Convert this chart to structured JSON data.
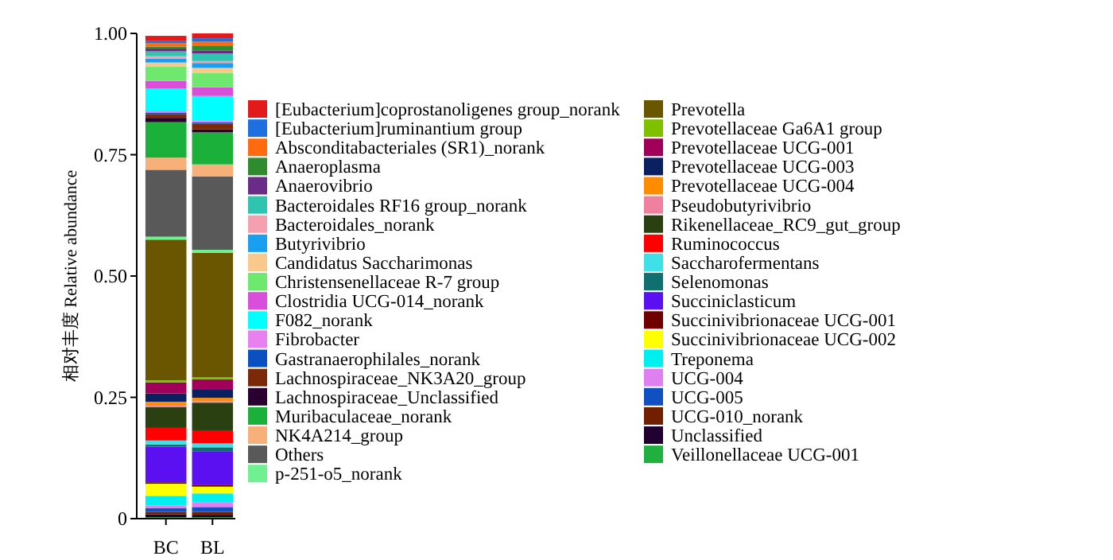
{
  "chart_data": {
    "type": "bar",
    "stacked": true,
    "ylabel": "相对丰度 Relative abundance",
    "categories": [
      "BC",
      "BL"
    ],
    "ylim": [
      0,
      1
    ],
    "yticks": [
      0,
      0.25,
      {
        "value": 0.5,
        "label": "0.50"
      },
      0.75,
      {
        "value": 1,
        "label": "1.00"
      }
    ],
    "legend": "right",
    "grid": false,
    "series": [
      {
        "name": "Veillonellaceae UCG-001",
        "color": "#20b040",
        "values": [
          0.003,
          0.003
        ]
      },
      {
        "name": "Unclassified",
        "color": "#200030",
        "values": [
          0.006,
          0.005
        ]
      },
      {
        "name": "UCG-010_norank",
        "color": "#702000",
        "values": [
          0.005,
          0.006
        ]
      },
      {
        "name": "UCG-005",
        "color": "#1050c0",
        "values": [
          0.008,
          0.01
        ]
      },
      {
        "name": "UCG-004",
        "color": "#e080f0",
        "values": [
          0.005,
          0.01
        ]
      },
      {
        "name": "Treponema",
        "color": "#00f0f0",
        "values": [
          0.02,
          0.018
        ]
      },
      {
        "name": "Succinivibrionaceae UCG-002",
        "color": "#ffff00",
        "values": [
          0.025,
          0.014
        ]
      },
      {
        "name": "Succinivibrionaceae UCG-001",
        "color": "#700000",
        "values": [
          0.003,
          0.003
        ]
      },
      {
        "name": "Succiniclasticum",
        "color": "#5a10f0",
        "values": [
          0.073,
          0.07
        ]
      },
      {
        "name": "Selenomonas",
        "color": "#107070",
        "values": [
          0.005,
          0.008
        ]
      },
      {
        "name": "Saccharofermentans",
        "color": "#40e0e8",
        "values": [
          0.008,
          0.008
        ]
      },
      {
        "name": "Ruminococcus",
        "color": "#ff0000",
        "values": [
          0.026,
          0.027
        ]
      },
      {
        "name": "Rikenellaceae_RC9_gut_group",
        "color": "#2a4010",
        "values": [
          0.043,
          0.057
        ]
      },
      {
        "name": "Pseudobutyrivibrio",
        "color": "#f080a0",
        "values": [
          0.003,
          0.003
        ]
      },
      {
        "name": "Prevotellaceae UCG-004",
        "color": "#ff8c00",
        "values": [
          0.008,
          0.007
        ]
      },
      {
        "name": "Prevotellaceae UCG-003",
        "color": "#0a2060",
        "values": [
          0.017,
          0.018
        ]
      },
      {
        "name": "Prevotellaceae UCG-001",
        "color": "#a0005a",
        "values": [
          0.023,
          0.02
        ]
      },
      {
        "name": "Prevotellaceae Ga6A1 group",
        "color": "#7fc000",
        "values": [
          0.004,
          0.004
        ]
      },
      {
        "name": "Prevotella",
        "color": "#6b5600",
        "values": [
          0.29,
          0.257
        ]
      },
      {
        "name": "p-251-o5_norank",
        "color": "#70f090",
        "values": [
          0.006,
          0.006
        ]
      },
      {
        "name": "Others",
        "color": "#595959",
        "values": [
          0.138,
          0.151
        ]
      },
      {
        "name": "NK4A214_group",
        "color": "#f8b07a",
        "values": [
          0.025,
          0.025
        ]
      },
      {
        "name": "Muribaculaceae_norank",
        "color": "#1ab03a",
        "values": [
          0.073,
          0.066
        ]
      },
      {
        "name": "Lachnospiraceae_Unclassified",
        "color": "#2a0030",
        "values": [
          0.009,
          0.006
        ]
      },
      {
        "name": "Lachnospiraceae_NK3A20_group",
        "color": "#7a2a08",
        "values": [
          0.008,
          0.012
        ]
      },
      {
        "name": "Gastranaerophilales_norank",
        "color": "#0a50c0",
        "values": [
          0.003,
          0.003
        ]
      },
      {
        "name": "Fibrobacter",
        "color": "#e880f0",
        "values": [
          0.004,
          0.004
        ]
      },
      {
        "name": "F082_norank",
        "color": "#00ffff",
        "values": [
          0.045,
          0.05
        ]
      },
      {
        "name": "Clostridia UCG-014_norank",
        "color": "#d94fd9",
        "values": [
          0.016,
          0.018
        ]
      },
      {
        "name": "Christensenellaceae R-7 group",
        "color": "#6ee86e",
        "values": [
          0.03,
          0.03
        ]
      },
      {
        "name": "Candidatus Saccharimonas",
        "color": "#f9c98c",
        "values": [
          0.008,
          0.01
        ]
      },
      {
        "name": "Butyrivibrio",
        "color": "#1a9ff0",
        "values": [
          0.008,
          0.01
        ]
      },
      {
        "name": "Bacteroidales_norank",
        "color": "#f4a0b0",
        "values": [
          0.005,
          0.004
        ]
      },
      {
        "name": "Bacteroidales RF16 group_norank",
        "color": "#2ec4b0",
        "values": [
          0.01,
          0.016
        ]
      },
      {
        "name": "Anaerovibrio",
        "color": "#6a2c86",
        "values": [
          0.006,
          0.006
        ]
      },
      {
        "name": "Anaeroplasma",
        "color": "#2e8b2e",
        "values": [
          0.004,
          0.01
        ]
      },
      {
        "name": "Absconditabacteriales (SR1)_norank",
        "color": "#ff6a10",
        "values": [
          0.007,
          0.008
        ]
      },
      {
        "name": "[Eubacterium]ruminantium group",
        "color": "#1e6fe0",
        "values": [
          0.005,
          0.007
        ]
      },
      {
        "name": "[Eubacterium]coprostanoligenes group_norank",
        "color": "#e31a1c",
        "values": [
          0.01,
          0.01
        ]
      }
    ]
  }
}
